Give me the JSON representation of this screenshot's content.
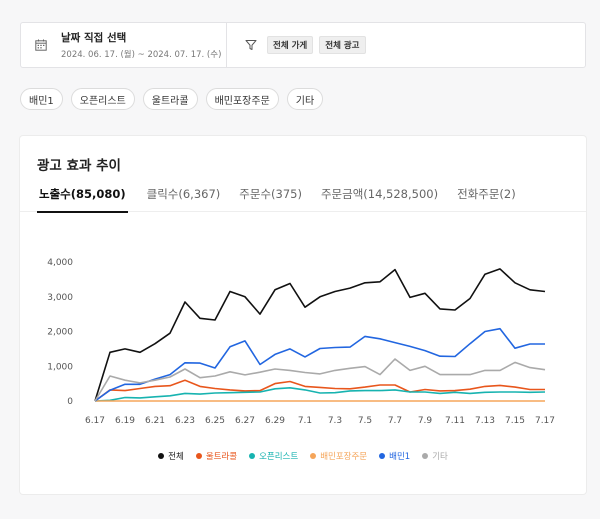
{
  "filter": {
    "title": "날짜 직접 선택",
    "range": "2024. 06. 17. (월) ~ 2024. 07. 17. (수)",
    "tags": [
      "전체 가게",
      "전체 광고"
    ]
  },
  "chips": [
    "배민1",
    "오픈리스트",
    "울트라콜",
    "배민포장주문",
    "기타"
  ],
  "card": {
    "title": "광고 효과 추이",
    "tabs": [
      "노출수(85,080)",
      "클릭수(6,367)",
      "주문수(375)",
      "주문금액(14,528,500)",
      "전화주문(2)"
    ],
    "active_tab": 0
  },
  "chart_data": {
    "type": "line",
    "x": [
      "6.17",
      "6.18",
      "6.19",
      "6.20",
      "6.21",
      "6.22",
      "6.23",
      "6.24",
      "6.25",
      "6.26",
      "6.27",
      "6.28",
      "6.29",
      "6.30",
      "7.1",
      "7.2",
      "7.3",
      "7.4",
      "7.5",
      "7.6",
      "7.7",
      "7.8",
      "7.9",
      "7.10",
      "7.11",
      "7.12",
      "7.13",
      "7.14",
      "7.15",
      "7.16",
      "7.17"
    ],
    "x_tick_labels": [
      "6.17",
      "6.19",
      "6.21",
      "6.23",
      "6.25",
      "6.27",
      "6.29",
      "7.1",
      "7.3",
      "7.5",
      "7.7",
      "7.9",
      "7.11",
      "7.13",
      "7.15",
      "7.17"
    ],
    "y_ticks": [
      "0",
      "1,000",
      "2,000",
      "3,000",
      "4,000"
    ],
    "ylim": [
      0,
      4200
    ],
    "grid": false,
    "legend_position": "bottom",
    "series": [
      {
        "name": "전체",
        "color": "#111111",
        "values": [
          0,
          1400,
          1500,
          1400,
          1650,
          1950,
          2850,
          2380,
          2330,
          3150,
          3000,
          2500,
          3200,
          3380,
          2700,
          3000,
          3150,
          3250,
          3400,
          3430,
          3780,
          2980,
          3100,
          2650,
          2620,
          2950,
          3650,
          3800,
          3400,
          3200,
          3150
        ]
      },
      {
        "name": "울트라콜",
        "color": "#e8561c",
        "values": [
          0,
          320,
          300,
          360,
          420,
          440,
          600,
          420,
          360,
          320,
          290,
          300,
          500,
          560,
          420,
          390,
          360,
          350,
          400,
          460,
          460,
          260,
          330,
          290,
          300,
          340,
          420,
          450,
          400,
          330,
          330
        ]
      },
      {
        "name": "오픈리스트",
        "color": "#17b3b0",
        "values": [
          0,
          20,
          100,
          90,
          120,
          150,
          220,
          200,
          230,
          240,
          250,
          260,
          350,
          380,
          320,
          230,
          240,
          290,
          300,
          300,
          320,
          260,
          260,
          220,
          250,
          220,
          250,
          260,
          260,
          250,
          260
        ]
      },
      {
        "name": "배민포장주문",
        "color": "#f5a55a",
        "values": [
          0,
          0,
          0,
          0,
          0,
          0,
          0,
          0,
          0,
          0,
          0,
          0,
          0,
          0,
          0,
          0,
          0,
          0,
          0,
          0,
          0,
          0,
          0,
          0,
          0,
          0,
          0,
          0,
          0,
          0,
          0
        ]
      },
      {
        "name": "배민1",
        "color": "#2266e0",
        "values": [
          0,
          310,
          480,
          480,
          630,
          760,
          1100,
          1090,
          950,
          1560,
          1730,
          1050,
          1340,
          1500,
          1270,
          1510,
          1540,
          1550,
          1860,
          1790,
          1680,
          1570,
          1450,
          1290,
          1280,
          1650,
          2000,
          2080,
          1520,
          1640,
          1640
        ]
      },
      {
        "name": "기타",
        "color": "#aaaaaa",
        "values": [
          0,
          720,
          600,
          520,
          600,
          690,
          920,
          670,
          720,
          840,
          750,
          830,
          920,
          880,
          820,
          780,
          880,
          940,
          990,
          760,
          1210,
          880,
          1000,
          760,
          760,
          760,
          880,
          880,
          1110,
          960,
          900
        ]
      }
    ]
  }
}
